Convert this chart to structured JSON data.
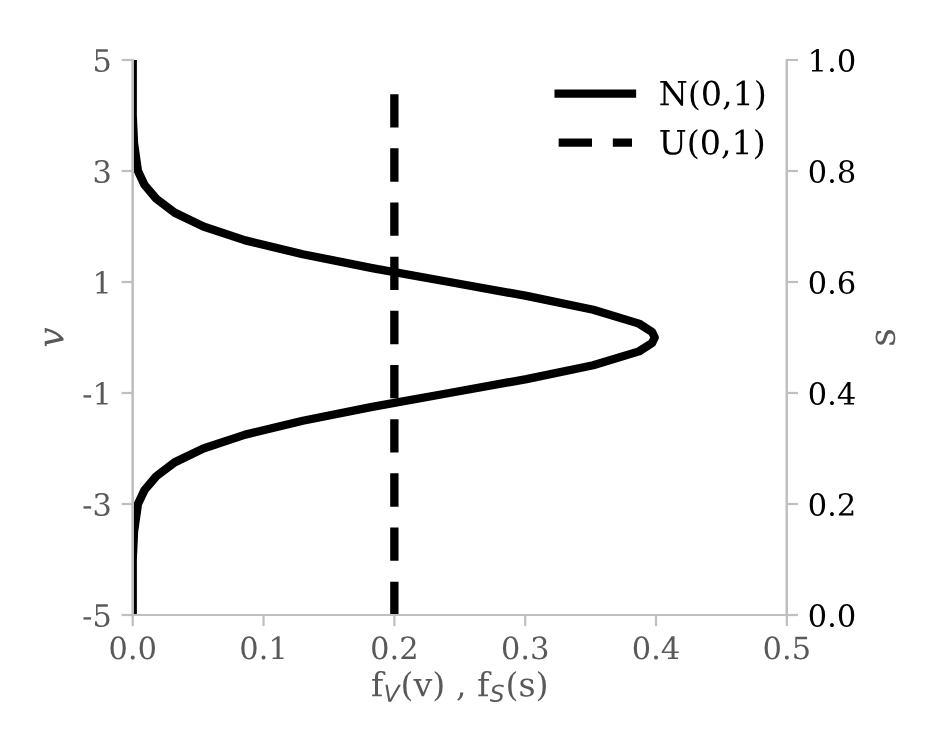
{
  "chart_data": {
    "type": "line",
    "xlabel": "f$_{V}$(v) , f$_{S}$(s)",
    "ylabel": "v",
    "y2label": "s",
    "xlim": [
      0,
      0.5
    ],
    "xticks": [
      {
        "value": 0,
        "label": "0.0"
      },
      0.1,
      0.2,
      0.3,
      0.4,
      0.5
    ],
    "ylim": [
      -5,
      5
    ],
    "yticks": [
      -5,
      -3,
      -1,
      1,
      3,
      5
    ],
    "y2lim": [
      0,
      1
    ],
    "y2ticks": [
      {
        "value": 0,
        "label": "0.0"
      },
      0.2,
      0.4,
      0.6,
      0.8,
      {
        "value": 1,
        "label": "1.0"
      }
    ],
    "legend": "top right",
    "grid": false,
    "marker": "none",
    "series": [
      {
        "name": "N(0,1)",
        "color": "#000000",
        "line_style": "solid",
        "x": [
          0,
          0,
          0.001,
          0.004,
          0.009,
          0.018,
          0.032,
          0.054,
          0.086,
          0.13,
          0.183,
          0.242,
          0.301,
          0.352,
          0.387,
          0.397,
          0.399,
          0.397,
          0.387,
          0.352,
          0.301,
          0.242,
          0.183,
          0.13,
          0.086,
          0.054,
          0.032,
          0.018,
          0.009,
          0.004,
          0.001,
          0,
          0
        ],
        "values": [
          -5,
          -4,
          -3.5,
          -3,
          -2.75,
          -2.5,
          -2.25,
          -2,
          -1.75,
          -1.5,
          -1.25,
          -1,
          -0.75,
          -0.5,
          -0.25,
          -0.1,
          0,
          0.1,
          0.25,
          0.5,
          0.75,
          1,
          1.25,
          1.5,
          1.75,
          2,
          2.25,
          2.5,
          2.75,
          3,
          3.5,
          4,
          5
        ]
      },
      {
        "name": "U(0,1)",
        "color": "#000000",
        "line_style": "dashed",
        "axis": "y2",
        "x": [
          0.2,
          0.2,
          0.2
        ],
        "values": [
          0,
          0.5,
          0.95
        ]
      }
    ]
  }
}
